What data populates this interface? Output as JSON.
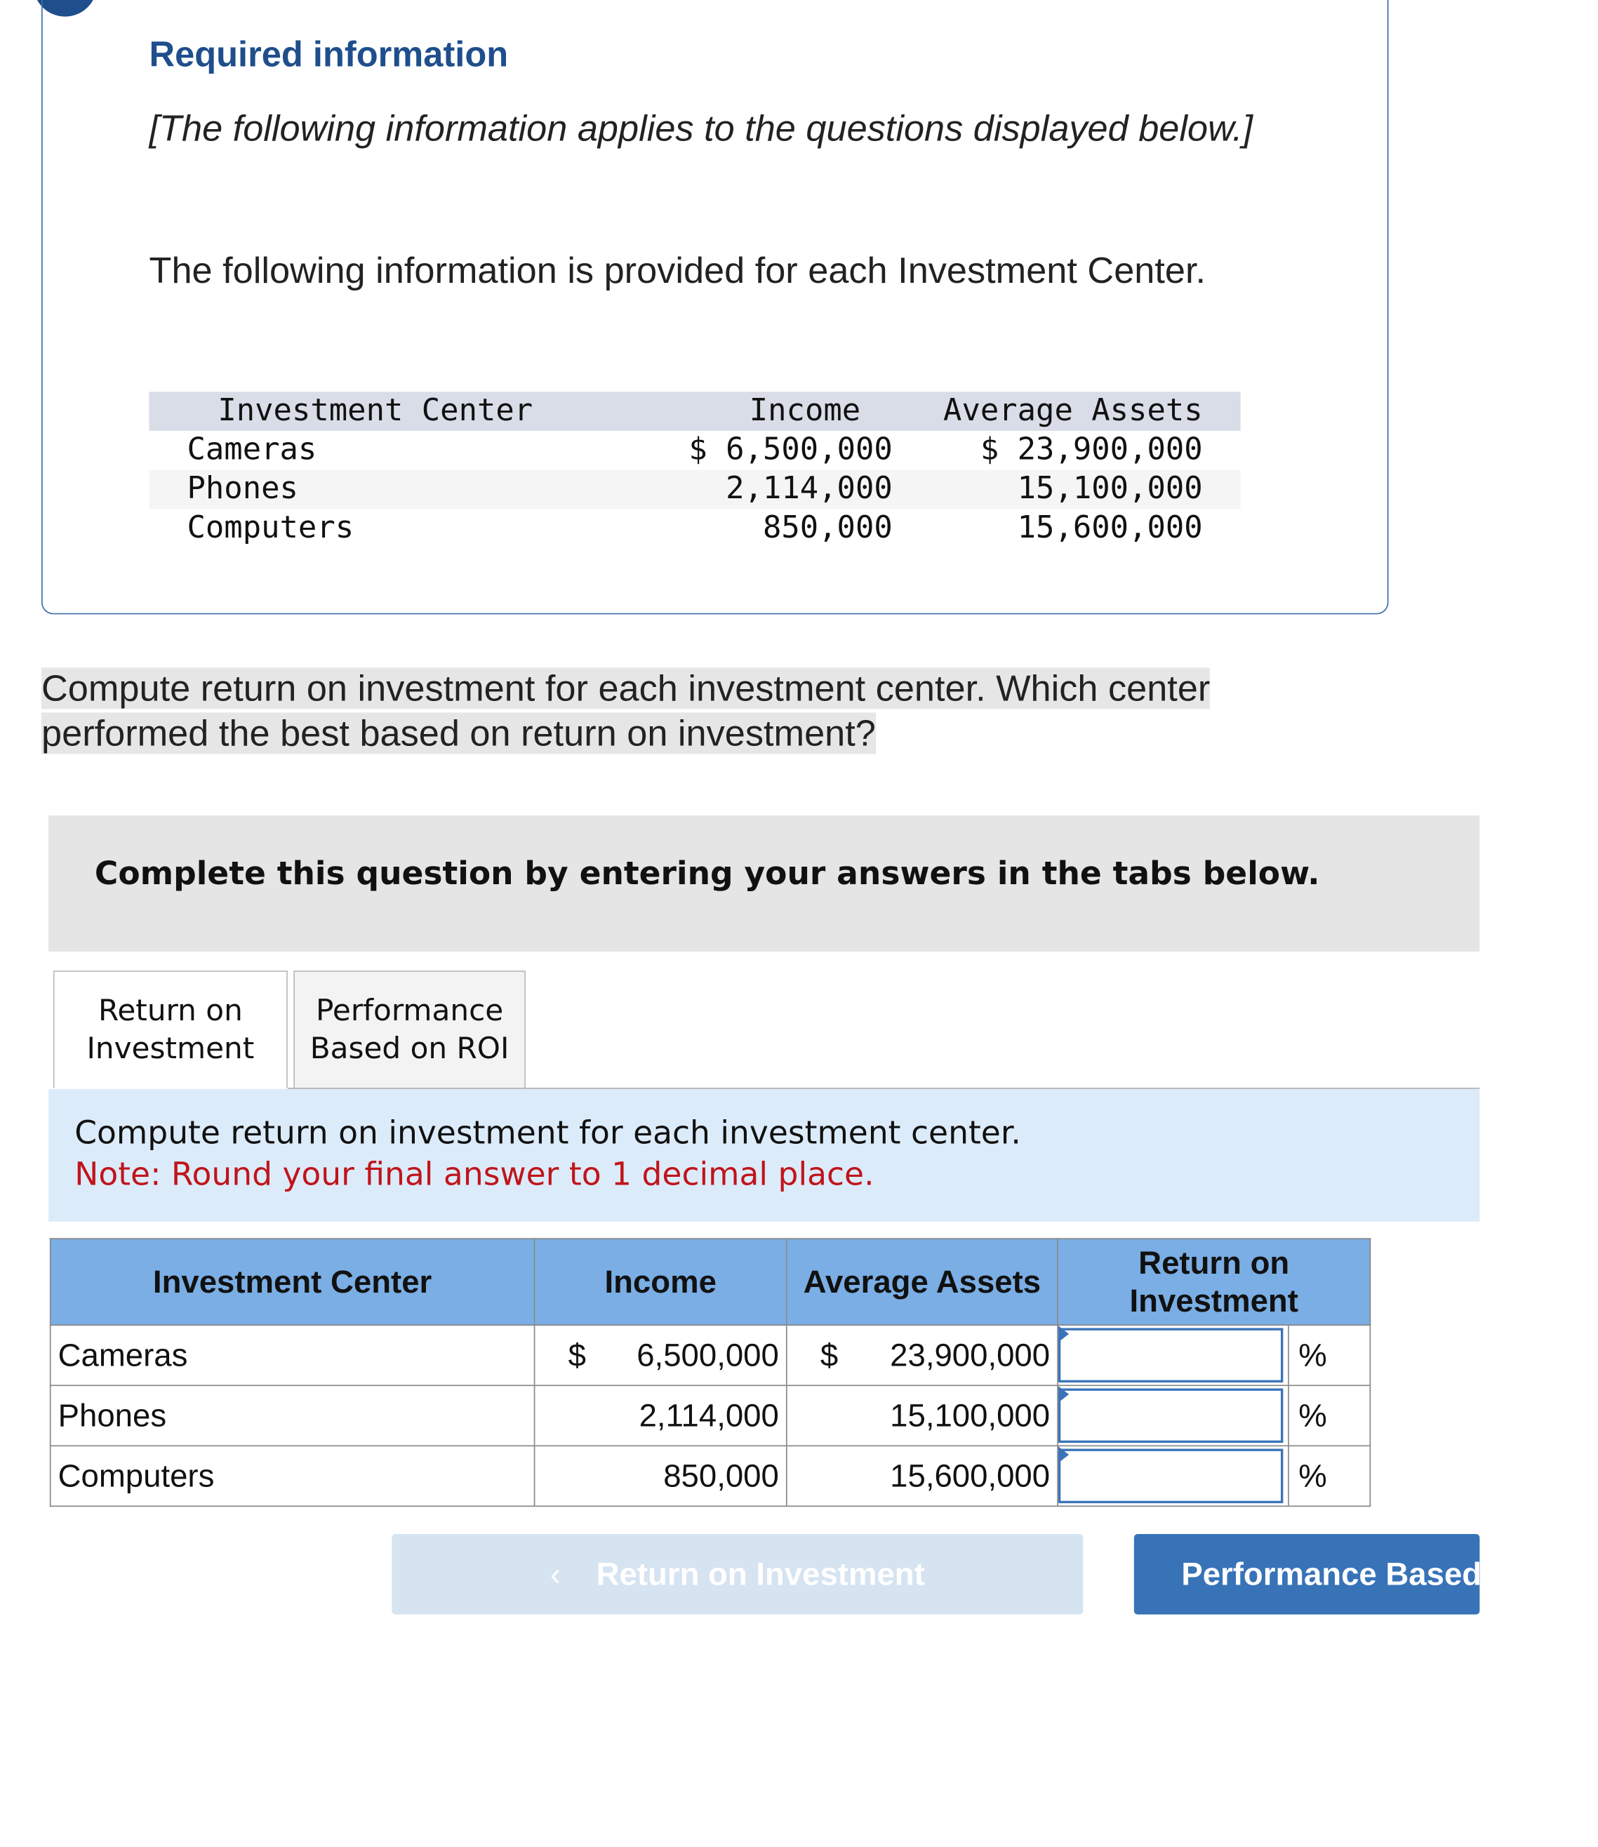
{
  "info": {
    "title": "Required information",
    "applies_note": "[The following information applies to the questions displayed below.]",
    "intro": "The following information is provided for each Investment Center.",
    "table": {
      "headers": [
        "Investment Center",
        "Income",
        "Average Assets"
      ],
      "rows": [
        {
          "center": "Cameras",
          "income": "$ 6,500,000",
          "assets": "$ 23,900,000"
        },
        {
          "center": "Phones",
          "income": "2,114,000",
          "assets": "15,100,000"
        },
        {
          "center": "Computers",
          "income": "850,000",
          "assets": "15,600,000"
        }
      ]
    }
  },
  "question": "Compute return on investment for each investment center. Which center performed the best based on return on investment?",
  "banner": "Complete this question by entering your answers in the tabs below.",
  "tabs": [
    {
      "label": "Return on Investment",
      "active": true
    },
    {
      "label": "Performance Based on ROI",
      "active": false
    }
  ],
  "instructions": {
    "text": "Compute return on investment for each investment center.",
    "note": "Note: Round your final answer to 1 decimal place."
  },
  "answer_table": {
    "headers": [
      "Investment Center",
      "Income",
      "Average Assets",
      "Return on Investment"
    ],
    "currency": "$",
    "unit": "%",
    "rows": [
      {
        "center": "Cameras",
        "income": "6,500,000",
        "assets": "23,900,000",
        "roi": ""
      },
      {
        "center": "Phones",
        "income": "2,114,000",
        "assets": "15,100,000",
        "roi": ""
      },
      {
        "center": "Computers",
        "income": "850,000",
        "assets": "15,600,000",
        "roi": ""
      }
    ]
  },
  "nav": {
    "prev_label": "Return on Investment",
    "prev_icon": "chevron-left-icon",
    "next_label": "Performance Based on ROI"
  },
  "colors": {
    "accent": "#1f4e8c",
    "header_blue": "#7aaee4",
    "button_blue": "#3873b8",
    "note_red": "#c0141b"
  }
}
